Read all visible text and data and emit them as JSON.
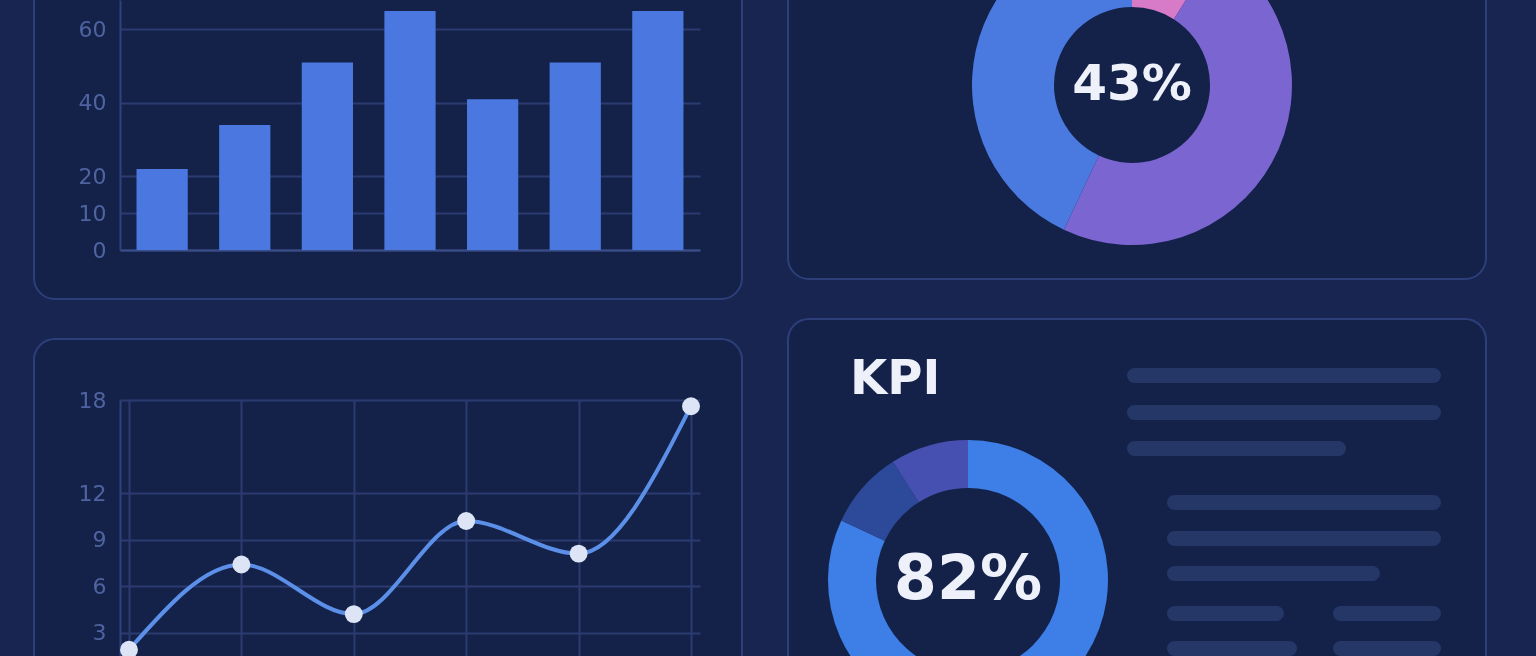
{
  "chart_data": [
    {
      "type": "bar",
      "categories": [
        null,
        null,
        null,
        null,
        null,
        null,
        null
      ],
      "values": [
        22,
        34,
        51,
        65,
        41,
        51,
        65
      ],
      "color": "#4b78e0",
      "ylim": [
        0,
        68
      ],
      "yticks": [
        0,
        10,
        20,
        40,
        60
      ],
      "grid": "y",
      "tick_labels": "y"
    },
    {
      "type": "donut",
      "categories": [
        null,
        null,
        null
      ],
      "values": [
        9,
        48,
        43
      ],
      "colors": [
        "#d77bc8",
        "#7b65d0",
        "#4a7ae0"
      ],
      "annotations": [
        "43%"
      ]
    },
    {
      "type": "line",
      "categories": [
        null,
        null,
        null,
        null,
        null,
        null
      ],
      "values": [
        1.9,
        7.4,
        4.2,
        10.2,
        8.1,
        17.6
      ],
      "color": "#5b8fe8",
      "ylim": [
        1.5,
        18
      ],
      "yticks": [
        3,
        6,
        9,
        12,
        18
      ],
      "grid": true,
      "marker": "circle",
      "tick_labels": "y"
    },
    {
      "type": "donut",
      "title": "KPI",
      "categories": [
        null,
        null,
        null
      ],
      "values": [
        82,
        9,
        9
      ],
      "colors": [
        "#3d7fe6",
        "#2d4a9a",
        "#4650b0"
      ],
      "annotations": [
        "82%"
      ]
    }
  ]
}
